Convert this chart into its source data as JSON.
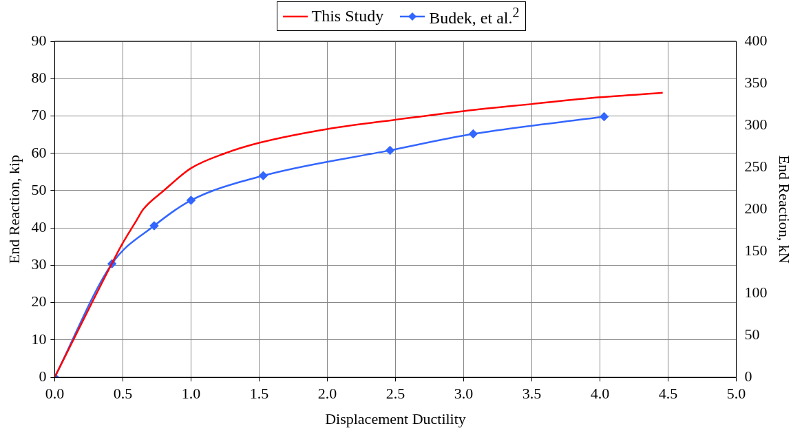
{
  "chart_data": {
    "type": "line",
    "xlabel": "Displacement Ductility",
    "ylabel": "End Reaction, kip",
    "y2label": "End Reaction, kN",
    "xlim": [
      0,
      5
    ],
    "xticks": [
      {
        "value": 0,
        "label": "0.0"
      },
      {
        "value": 0.5,
        "label": "0.5"
      },
      {
        "value": 1,
        "label": "1.0"
      },
      {
        "value": 1.5,
        "label": "1.5"
      },
      {
        "value": 2,
        "label": "2.0"
      },
      {
        "value": 2.5,
        "label": "2.5"
      },
      {
        "value": 3,
        "label": "3.0"
      },
      {
        "value": 3.5,
        "label": "3.5"
      },
      {
        "value": 4,
        "label": "4.0"
      },
      {
        "value": 4.5,
        "label": "4.5"
      },
      {
        "value": 5,
        "label": "5.0"
      }
    ],
    "ylim": [
      0,
      90
    ],
    "yticks": [
      0,
      10,
      20,
      30,
      40,
      50,
      60,
      70,
      80,
      90
    ],
    "y2lim": [
      0,
      400
    ],
    "y2ticks": [
      0,
      50,
      100,
      150,
      200,
      250,
      300,
      350,
      400
    ],
    "grid": true,
    "legend": "top",
    "series": [
      {
        "name": "This Study",
        "color": "#ff0000",
        "marker": "none",
        "x": [
          0,
          0.42,
          0.5,
          0.6,
          0.65,
          0.8,
          1.0,
          1.25,
          1.5,
          2.0,
          2.5,
          3.0,
          3.5,
          4.0,
          4.46
        ],
        "values": [
          0,
          30.5,
          36,
          42,
          45,
          50,
          56,
          60,
          62.8,
          66.5,
          69,
          71.3,
          73.2,
          75,
          76.2
        ]
      },
      {
        "name": "Budek, et al.$^{2}$",
        "color": "#3366ff",
        "marker": "diamond",
        "x": [
          0,
          0.42,
          0.73,
          1.0,
          1.53,
          2.46,
          3.07,
          4.03
        ],
        "values": [
          0,
          30.4,
          40.6,
          47.4,
          54,
          60.8,
          65.2,
          69.8
        ]
      }
    ]
  }
}
